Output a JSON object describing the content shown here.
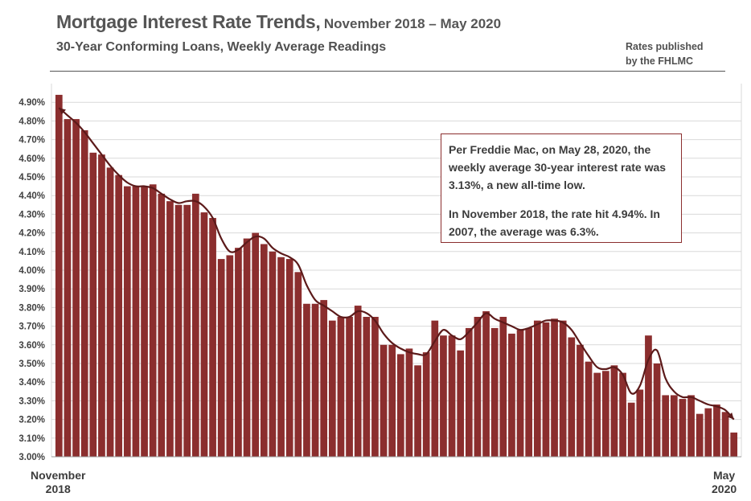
{
  "header": {
    "title_main": "Mortgage Interest Rate Trends,",
    "title_period": "November 2018 – May 2020",
    "subtitle": "30-Year Conforming  Loans,  Weekly Average Readings",
    "source_line1": "Rates published",
    "source_line2": "by the FHLMC"
  },
  "callout": {
    "line1": "Per Freddie Mac, on May 28, 2020, the weekly average 30-year interest rate was 3.13%, a new all-time low.",
    "line2": "In November 2018, the rate hit 4.94%. In 2007, the average was 6.3%."
  },
  "x_axis": {
    "start_month": "November",
    "start_year": "2018",
    "end_month": "May",
    "end_year": "2020"
  },
  "colors": {
    "bar": "#8b2e2e",
    "trend_line": "#5c1a1a",
    "grid": "#d9d9d9",
    "callout_border": "#8b2e2e"
  },
  "chart_data": {
    "type": "bar",
    "title": "Mortgage Interest Rate Trends, November 2018 – May 2020",
    "subtitle": "30-Year Conforming  Loans,  Weekly Average Readings",
    "ylim": [
      3.0,
      5.0
    ],
    "y_ticks": [
      "3.00%",
      "3.10%",
      "3.20%",
      "3.30%",
      "3.40%",
      "3.50%",
      "3.60%",
      "3.70%",
      "3.80%",
      "3.90%",
      "4.00%",
      "4.10%",
      "4.20%",
      "4.30%",
      "4.40%",
      "4.50%",
      "4.60%",
      "4.70%",
      "4.80%",
      "4.90%"
    ],
    "grid": true,
    "x_start_label": "November 2018",
    "x_end_label": "May 2020",
    "values": [
      4.94,
      4.81,
      4.81,
      4.75,
      4.63,
      4.62,
      4.55,
      4.51,
      4.45,
      4.45,
      4.45,
      4.46,
      4.41,
      4.37,
      4.35,
      4.35,
      4.41,
      4.31,
      4.28,
      4.06,
      4.08,
      4.12,
      4.17,
      4.2,
      4.14,
      4.1,
      4.07,
      4.06,
      3.99,
      3.82,
      3.82,
      3.84,
      3.73,
      3.75,
      3.75,
      3.81,
      3.75,
      3.75,
      3.6,
      3.6,
      3.55,
      3.58,
      3.49,
      3.56,
      3.73,
      3.65,
      3.65,
      3.57,
      3.69,
      3.75,
      3.78,
      3.69,
      3.75,
      3.66,
      3.68,
      3.69,
      3.73,
      3.72,
      3.74,
      3.73,
      3.64,
      3.6,
      3.51,
      3.45,
      3.46,
      3.49,
      3.45,
      3.29,
      3.36,
      3.65,
      3.5,
      3.33,
      3.33,
      3.31,
      3.33,
      3.23,
      3.26,
      3.28,
      3.24,
      3.13
    ],
    "trend_line": {
      "type": "line",
      "description_free": true,
      "values": [
        4.87,
        4.83,
        4.79,
        4.74,
        4.68,
        4.62,
        4.56,
        4.51,
        4.47,
        4.45,
        4.45,
        4.44,
        4.41,
        4.38,
        4.36,
        4.37,
        4.37,
        4.34,
        4.28,
        4.17,
        4.1,
        4.11,
        4.15,
        4.18,
        4.17,
        4.12,
        4.09,
        4.07,
        4.03,
        3.92,
        3.84,
        3.81,
        3.78,
        3.75,
        3.75,
        3.78,
        3.77,
        3.73,
        3.66,
        3.61,
        3.58,
        3.56,
        3.55,
        3.55,
        3.62,
        3.68,
        3.65,
        3.63,
        3.67,
        3.72,
        3.77,
        3.74,
        3.72,
        3.7,
        3.68,
        3.69,
        3.71,
        3.73,
        3.73,
        3.72,
        3.68,
        3.61,
        3.54,
        3.48,
        3.47,
        3.48,
        3.44,
        3.34,
        3.38,
        3.52,
        3.57,
        3.42,
        3.35,
        3.32,
        3.32,
        3.3,
        3.28,
        3.27,
        3.25,
        3.2
      ]
    }
  }
}
